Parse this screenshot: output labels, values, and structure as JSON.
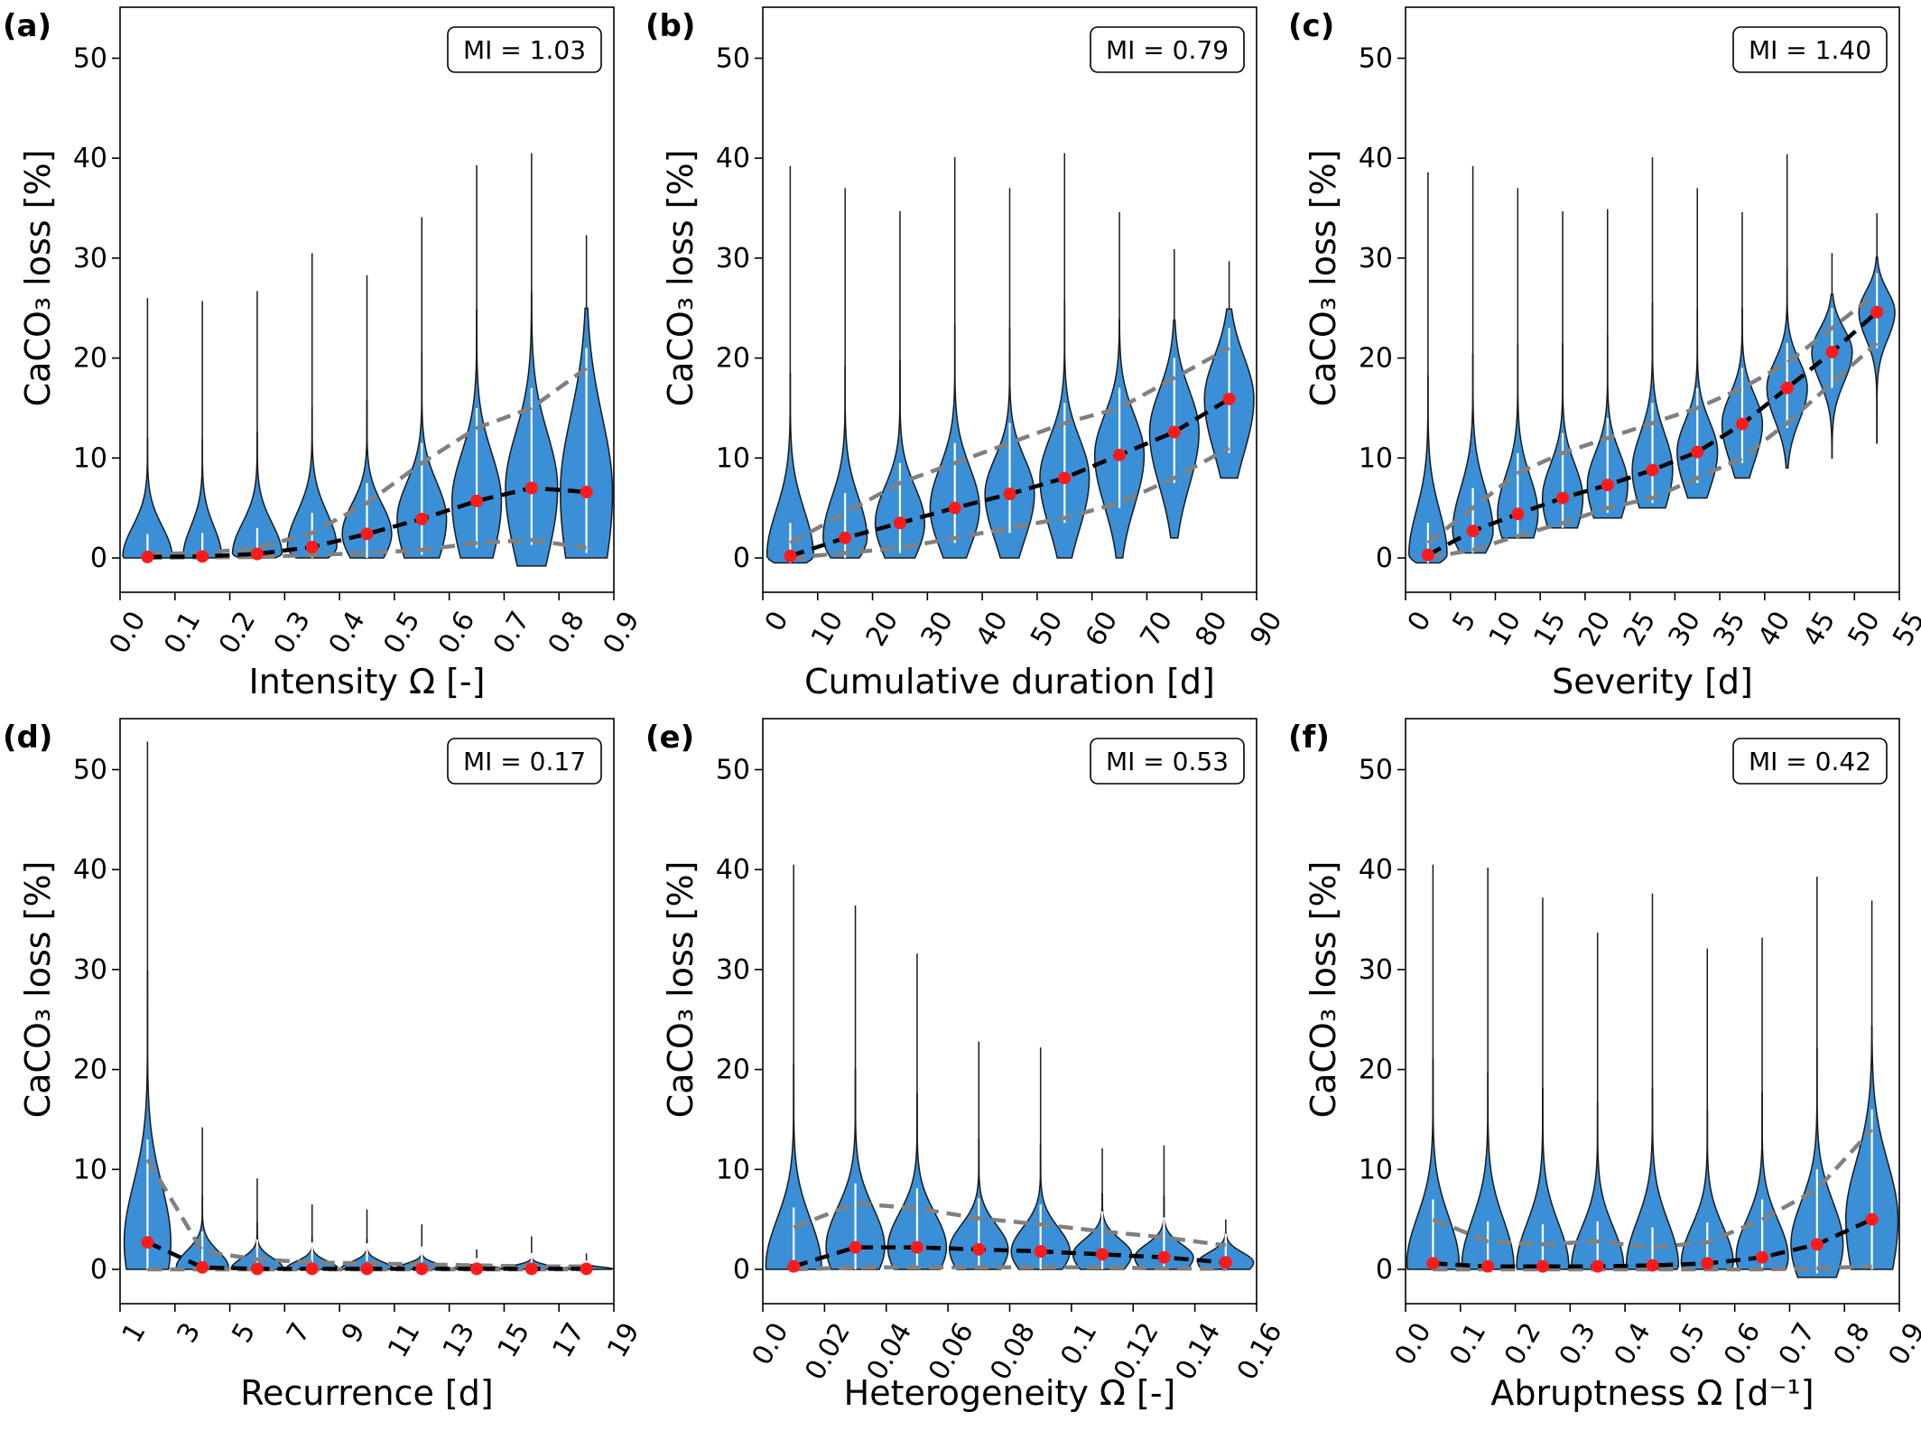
{
  "colors": {
    "violin_fill": "#3a8fd6",
    "violin_edge": "#1a1a1a",
    "median_point": "#ff1a1a",
    "mean_line": "#000000",
    "quantile_line": "#808080",
    "median_line": "#ffffff"
  },
  "chart_data": [
    {
      "type": "violin",
      "panel": "(a)",
      "mi_label": "MI = 1.03",
      "xlabel": "Intensity Ω [-]",
      "ylabel": "CaCO₃ loss [%]",
      "xlim": [
        0,
        0.9
      ],
      "ylim": [
        -3,
        55
      ],
      "xticks": [
        "0.0",
        "0.1",
        "0.2",
        "0.3",
        "0.4",
        "0.5",
        "0.6",
        "0.7",
        "0.8",
        "0.9"
      ],
      "yticks": [
        "0",
        "10",
        "20",
        "30",
        "40",
        "50"
      ],
      "x": [
        0.05,
        0.15,
        0.25,
        0.35,
        0.45,
        0.55,
        0.65,
        0.75,
        0.85
      ],
      "max": [
        26,
        25.7,
        26.7,
        30.5,
        28.3,
        34.1,
        39.3,
        40.5,
        32.3
      ],
      "min": [
        0,
        0,
        0,
        0,
        0,
        0,
        0,
        -0.8,
        0
      ],
      "median": [
        0.1,
        0.15,
        0.4,
        1.1,
        2.4,
        3.9,
        5.7,
        7,
        6.6
      ],
      "q10": [
        0.02,
        0.05,
        0.1,
        0.3,
        0.5,
        0.8,
        1.5,
        1.8,
        1
      ],
      "q90": [
        0.4,
        0.5,
        1,
        2.5,
        5.5,
        9.5,
        13,
        15,
        19
      ],
      "width": [
        0.9,
        0.7,
        0.9,
        0.9,
        0.9,
        0.9,
        0.9,
        0.95,
        0.95
      ]
    },
    {
      "type": "violin",
      "panel": "(b)",
      "mi_label": "MI = 0.79",
      "xlabel": "Cumulative duration [d]",
      "ylabel": "CaCO₃ loss [%]",
      "xlim": [
        0,
        90
      ],
      "ylim": [
        -3,
        55
      ],
      "xticks": [
        "0",
        "10",
        "20",
        "30",
        "40",
        "50",
        "60",
        "70",
        "80",
        "90"
      ],
      "yticks": [
        "0",
        "10",
        "20",
        "30",
        "40",
        "50"
      ],
      "x": [
        5,
        15,
        25,
        35,
        45,
        55,
        65,
        75,
        85
      ],
      "max": [
        39.2,
        37,
        34.7,
        40.1,
        37,
        40.5,
        34.6,
        30.9,
        29.7
      ],
      "min": [
        -0.5,
        0,
        0,
        0,
        0,
        0,
        0,
        2,
        8
      ],
      "median": [
        0.2,
        2,
        3.5,
        5,
        6.4,
        8,
        10.3,
        12.6,
        15.9
      ],
      "q10": [
        0,
        0.5,
        1,
        2,
        3,
        4,
        5.5,
        8,
        11
      ],
      "q90": [
        1.5,
        4.5,
        7.5,
        9.5,
        11.5,
        13.5,
        15,
        18,
        21
      ],
      "width": [
        0.85,
        0.8,
        0.9,
        0.9,
        0.9,
        0.9,
        0.9,
        0.9,
        0.9
      ]
    },
    {
      "type": "violin",
      "panel": "(c)",
      "mi_label": "MI = 1.40",
      "xlabel": "Severity [d]",
      "ylabel": "CaCO₃ loss [%]",
      "xlim": [
        0,
        55
      ],
      "ylim": [
        -3,
        55
      ],
      "xticks": [
        "0",
        "5",
        "10",
        "15",
        "20",
        "25",
        "30",
        "35",
        "40",
        "45",
        "50",
        "55"
      ],
      "yticks": [
        "0",
        "10",
        "20",
        "30",
        "40",
        "50"
      ],
      "x": [
        2.5,
        7.5,
        12.5,
        17.5,
        22.5,
        27.5,
        32.5,
        37.5,
        42.5,
        47.5,
        52.5
      ],
      "max": [
        38.6,
        39.2,
        37,
        34.7,
        34.9,
        40.1,
        37,
        34.6,
        40.4,
        30.5,
        34.5
      ],
      "min": [
        -0.5,
        0.5,
        2,
        3,
        4,
        5,
        6,
        8,
        9,
        10,
        11.5
      ],
      "median": [
        0.3,
        2.7,
        4.4,
        6,
        7.3,
        8.8,
        10.6,
        13.4,
        17,
        20.6,
        24.6
      ],
      "q10": [
        0,
        0.8,
        2.2,
        3.5,
        5,
        6,
        8,
        10,
        13.5,
        17.5,
        21.5
      ],
      "q90": [
        1.5,
        5,
        8.5,
        10.5,
        12,
        13.5,
        15,
        17,
        19.5,
        23,
        26.5
      ],
      "width": [
        0.85,
        0.9,
        0.9,
        0.9,
        0.9,
        0.9,
        0.9,
        0.9,
        0.9,
        0.9,
        0.8
      ]
    },
    {
      "type": "violin",
      "panel": "(d)",
      "mi_label": "MI = 0.17",
      "xlabel": "Recurrence [d]",
      "ylabel": "CaCO₃ loss [%]",
      "xlim": [
        1,
        19
      ],
      "ylim": [
        -3,
        55
      ],
      "xticks": [
        "1",
        "3",
        "5",
        "7",
        "9",
        "11",
        "13",
        "15",
        "17",
        "19"
      ],
      "yticks": [
        "0",
        "10",
        "20",
        "30",
        "40",
        "50"
      ],
      "x": [
        2,
        4,
        6,
        8,
        10,
        12,
        14,
        16,
        18
      ],
      "max": [
        52.8,
        14.2,
        9.1,
        6.5,
        6,
        4.5,
        2,
        3.3,
        1.6
      ],
      "min": [
        0,
        0,
        0,
        0,
        0,
        0,
        0,
        0,
        0
      ],
      "median": [
        2.7,
        0.2,
        0.05,
        0.05,
        0.05,
        0.05,
        0.05,
        0.05,
        0.05
      ],
      "q10": [
        0,
        0,
        0,
        0,
        0,
        0,
        0,
        0,
        0
      ],
      "q90": [
        11,
        1.8,
        1,
        0.7,
        0.6,
        0.5,
        0.4,
        0.3,
        0.3
      ],
      "width": [
        0.85,
        0.95,
        0.95,
        0.95,
        0.95,
        0.95,
        0.95,
        0.95,
        0.95
      ]
    },
    {
      "type": "violin",
      "panel": "(e)",
      "mi_label": "MI = 0.53",
      "xlabel": "Heterogeneity Ω [-]",
      "ylabel": "CaCO₃ loss [%]",
      "xlim": [
        0,
        0.16
      ],
      "ylim": [
        -3,
        55
      ],
      "xticks": [
        "0.0",
        "0.02",
        "0.04",
        "0.06",
        "0.08",
        "0.1",
        "0.12",
        "0.14",
        "0.16"
      ],
      "yticks": [
        "0",
        "10",
        "20",
        "30",
        "40",
        "50"
      ],
      "x": [
        0.01,
        0.03,
        0.05,
        0.07,
        0.09,
        0.11,
        0.13,
        0.15
      ],
      "max": [
        40.5,
        36.4,
        31.6,
        22.8,
        22.2,
        12.1,
        12.4,
        5
      ],
      "min": [
        0,
        0,
        0,
        0,
        0,
        0,
        0,
        0
      ],
      "median": [
        0.3,
        2.2,
        2.2,
        2,
        1.8,
        1.5,
        1.2,
        0.7
      ],
      "q10": [
        0,
        0.2,
        0.2,
        0.2,
        0.2,
        0.2,
        0.1,
        0.05
      ],
      "q90": [
        4.2,
        6.6,
        6.1,
        5.1,
        4.5,
        3.8,
        3.2,
        2.4
      ],
      "width": [
        0.9,
        0.95,
        0.95,
        0.95,
        0.95,
        0.95,
        0.95,
        0.9
      ]
    },
    {
      "type": "violin",
      "panel": "(f)",
      "mi_label": "MI = 0.42",
      "xlabel": "Abruptness Ω [d⁻¹]",
      "ylabel": "CaCO₃ loss [%]",
      "xlim": [
        0,
        0.9
      ],
      "ylim": [
        -3,
        55
      ],
      "xticks": [
        "0.0",
        "0.1",
        "0.2",
        "0.3",
        "0.4",
        "0.5",
        "0.6",
        "0.7",
        "0.8",
        "0.9"
      ],
      "yticks": [
        "0",
        "10",
        "20",
        "30",
        "40",
        "50"
      ],
      "x": [
        0.05,
        0.15,
        0.25,
        0.35,
        0.45,
        0.55,
        0.65,
        0.75,
        0.85
      ],
      "max": [
        40.5,
        40.2,
        37.2,
        33.7,
        37.6,
        32.1,
        33.2,
        39.3,
        36.9
      ],
      "min": [
        0,
        0,
        0,
        0,
        0,
        0,
        0,
        -0.8,
        0
      ],
      "median": [
        0.6,
        0.3,
        0.3,
        0.3,
        0.4,
        0.6,
        1.2,
        2.5,
        5
      ],
      "q10": [
        0,
        0,
        0,
        0,
        0,
        0,
        0,
        0.1,
        0.3
      ],
      "q90": [
        5,
        2.8,
        2.5,
        2.8,
        2.2,
        2.7,
        5,
        8,
        14
      ],
      "width": [
        0.95,
        0.95,
        0.95,
        0.95,
        0.95,
        0.95,
        0.95,
        0.95,
        0.95
      ]
    }
  ]
}
